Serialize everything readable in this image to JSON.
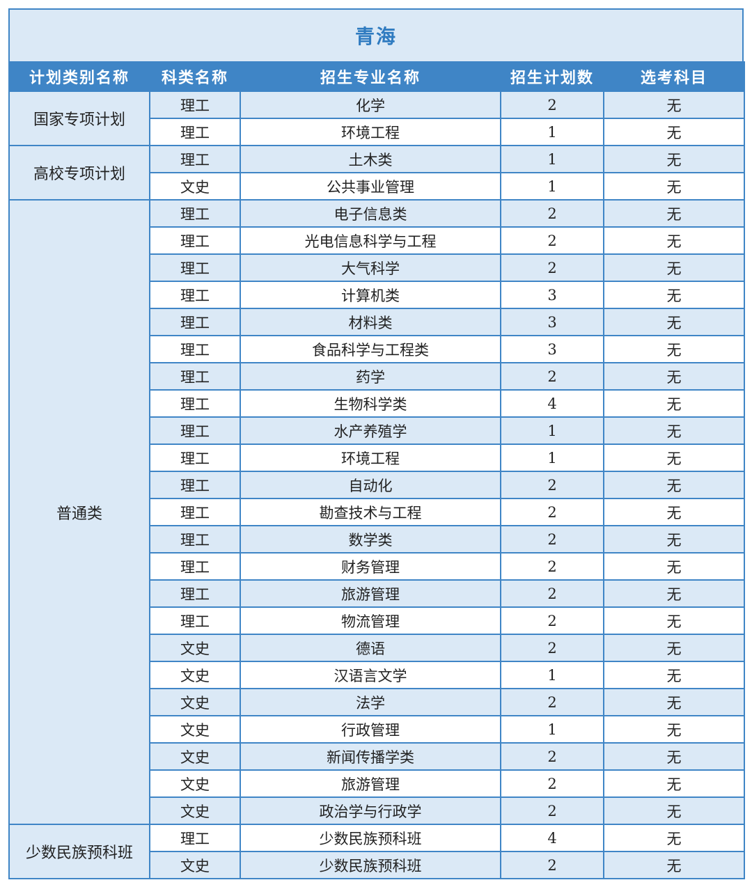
{
  "title": "青海",
  "headers": [
    "计划类别名称",
    "科类名称",
    "招生专业名称",
    "招生计划数",
    "选考科目"
  ],
  "groups": [
    {
      "name": "国家专项计划",
      "rows": [
        [
          "理工",
          "化学",
          "2",
          "无"
        ],
        [
          "理工",
          "环境工程",
          "1",
          "无"
        ]
      ]
    },
    {
      "name": "高校专项计划",
      "rows": [
        [
          "理工",
          "土木类",
          "1",
          "无"
        ],
        [
          "文史",
          "公共事业管理",
          "1",
          "无"
        ]
      ]
    },
    {
      "name": "普通类",
      "rows": [
        [
          "理工",
          "电子信息类",
          "2",
          "无"
        ],
        [
          "理工",
          "光电信息科学与工程",
          "2",
          "无"
        ],
        [
          "理工",
          "大气科学",
          "2",
          "无"
        ],
        [
          "理工",
          "计算机类",
          "3",
          "无"
        ],
        [
          "理工",
          "材料类",
          "3",
          "无"
        ],
        [
          "理工",
          "食品科学与工程类",
          "3",
          "无"
        ],
        [
          "理工",
          "药学",
          "2",
          "无"
        ],
        [
          "理工",
          "生物科学类",
          "4",
          "无"
        ],
        [
          "理工",
          "水产养殖学",
          "1",
          "无"
        ],
        [
          "理工",
          "环境工程",
          "1",
          "无"
        ],
        [
          "理工",
          "自动化",
          "2",
          "无"
        ],
        [
          "理工",
          "勘查技术与工程",
          "2",
          "无"
        ],
        [
          "理工",
          "数学类",
          "2",
          "无"
        ],
        [
          "理工",
          "财务管理",
          "2",
          "无"
        ],
        [
          "理工",
          "旅游管理",
          "2",
          "无"
        ],
        [
          "理工",
          "物流管理",
          "2",
          "无"
        ],
        [
          "文史",
          "德语",
          "2",
          "无"
        ],
        [
          "文史",
          "汉语言文学",
          "1",
          "无"
        ],
        [
          "文史",
          "法学",
          "2",
          "无"
        ],
        [
          "文史",
          "行政管理",
          "1",
          "无"
        ],
        [
          "文史",
          "新闻传播学类",
          "2",
          "无"
        ],
        [
          "文史",
          "旅游管理",
          "2",
          "无"
        ],
        [
          "文史",
          "政治学与行政学",
          "2",
          "无"
        ]
      ]
    },
    {
      "name": "少数民族预科班",
      "rows": [
        [
          "理工",
          "少数民族预科班",
          "4",
          "无"
        ],
        [
          "文史",
          "少数民族预科班",
          "2",
          "无"
        ]
      ]
    }
  ]
}
